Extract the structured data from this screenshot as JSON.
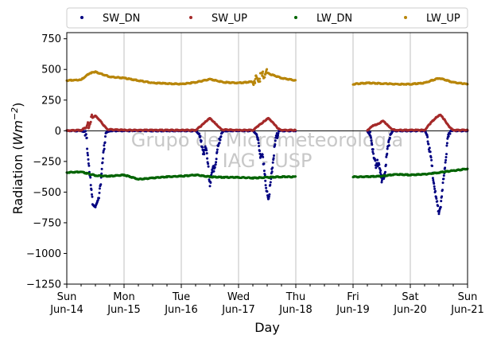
{
  "chart_data": {
    "type": "scatter",
    "title": "",
    "xlabel": "Day",
    "ylabel": "Radiation (Wm⁻²)",
    "ylabel_main": "Radiation (",
    "ylabel_unit": "Wm",
    "ylabel_exp": "−2",
    "ylabel_close": ")",
    "ylim": [
      -1250,
      800
    ],
    "yticks": [
      750,
      500,
      250,
      0,
      -250,
      -500,
      -750,
      -1000,
      -1250
    ],
    "ytick_labels": [
      "750",
      "500",
      "250",
      "0",
      "−250",
      "−500",
      "−750",
      "−1000",
      "−1250"
    ],
    "xlim": [
      0,
      7
    ],
    "xticks": [
      {
        "day": 0,
        "line1": "Sun",
        "line2": "Jun-14"
      },
      {
        "day": 1,
        "line1": "Mon",
        "line2": "Jun-15"
      },
      {
        "day": 2,
        "line1": "Tue",
        "line2": "Jun-16"
      },
      {
        "day": 3,
        "line1": "Wed",
        "line2": "Jun-17"
      },
      {
        "day": 4,
        "line1": "Thu",
        "line2": "Jun-18"
      },
      {
        "day": 5,
        "line1": "Fri",
        "line2": "Jun-19"
      },
      {
        "day": 6,
        "line1": "Sat",
        "line2": "Jun-20"
      },
      {
        "day": 7,
        "line1": "Sun",
        "line2": "Jun-21"
      }
    ],
    "grid": "x",
    "legend_position": "top",
    "watermark": [
      "Grupo de Micrometeorologia",
      "IAG - USP"
    ],
    "series": [
      {
        "name": "SW_DN",
        "color": "#000080",
        "points": [
          [
            0,
            0
          ],
          [
            0.25,
            0
          ],
          [
            0.32,
            -10
          ],
          [
            0.35,
            -80
          ],
          [
            0.4,
            -350
          ],
          [
            0.45,
            -600
          ],
          [
            0.5,
            -620
          ],
          [
            0.55,
            -560
          ],
          [
            0.6,
            -380
          ],
          [
            0.65,
            -150
          ],
          [
            0.68,
            -20
          ],
          [
            0.75,
            0
          ],
          [
            1.0,
            0
          ],
          [
            1.25,
            0
          ],
          [
            1.5,
            0
          ],
          [
            1.75,
            0
          ],
          [
            2.0,
            0
          ],
          [
            2.25,
            0
          ],
          [
            2.32,
            -30
          ],
          [
            2.38,
            -200
          ],
          [
            2.42,
            -120
          ],
          [
            2.46,
            -260
          ],
          [
            2.5,
            -420
          ],
          [
            2.55,
            -330
          ],
          [
            2.6,
            -250
          ],
          [
            2.65,
            -120
          ],
          [
            2.7,
            -20
          ],
          [
            2.75,
            0
          ],
          [
            3.0,
            0
          ],
          [
            3.25,
            0
          ],
          [
            3.32,
            -30
          ],
          [
            3.38,
            -220
          ],
          [
            3.42,
            -180
          ],
          [
            3.48,
            -480
          ],
          [
            3.52,
            -550
          ],
          [
            3.56,
            -430
          ],
          [
            3.6,
            -250
          ],
          [
            3.65,
            -80
          ],
          [
            3.7,
            0
          ],
          [
            4.0,
            0
          ],
          [
            5.25,
            0
          ],
          [
            5.3,
            -40
          ],
          [
            5.35,
            -150
          ],
          [
            5.4,
            -310
          ],
          [
            5.45,
            -230
          ],
          [
            5.5,
            -420
          ],
          [
            5.55,
            -350
          ],
          [
            5.6,
            -180
          ],
          [
            5.65,
            -30
          ],
          [
            5.7,
            0
          ],
          [
            6.0,
            0
          ],
          [
            6.25,
            0
          ],
          [
            6.3,
            -40
          ],
          [
            6.35,
            -200
          ],
          [
            6.4,
            -380
          ],
          [
            6.45,
            -560
          ],
          [
            6.5,
            -660
          ],
          [
            6.55,
            -550
          ],
          [
            6.6,
            -300
          ],
          [
            6.65,
            -80
          ],
          [
            6.7,
            0
          ],
          [
            7.0,
            0
          ]
        ]
      },
      {
        "name": "SW_UP",
        "color": "#a52a2a",
        "points": [
          [
            0,
            0
          ],
          [
            0.25,
            5
          ],
          [
            0.35,
            30
          ],
          [
            0.45,
            110
          ],
          [
            0.5,
            120
          ],
          [
            0.55,
            100
          ],
          [
            0.65,
            40
          ],
          [
            0.72,
            10
          ],
          [
            1.0,
            5
          ],
          [
            1.5,
            5
          ],
          [
            2.0,
            5
          ],
          [
            2.25,
            5
          ],
          [
            2.35,
            40
          ],
          [
            2.42,
            75
          ],
          [
            2.5,
            100
          ],
          [
            2.58,
            70
          ],
          [
            2.65,
            30
          ],
          [
            2.72,
            8
          ],
          [
            3.0,
            5
          ],
          [
            3.25,
            5
          ],
          [
            3.35,
            40
          ],
          [
            3.45,
            80
          ],
          [
            3.52,
            100
          ],
          [
            3.6,
            70
          ],
          [
            3.68,
            20
          ],
          [
            3.75,
            5
          ],
          [
            4.0,
            5
          ],
          [
            5.25,
            5
          ],
          [
            5.35,
            40
          ],
          [
            5.45,
            60
          ],
          [
            5.52,
            80
          ],
          [
            5.6,
            50
          ],
          [
            5.68,
            10
          ],
          [
            5.75,
            5
          ],
          [
            6.0,
            5
          ],
          [
            6.25,
            5
          ],
          [
            6.35,
            60
          ],
          [
            6.45,
            110
          ],
          [
            6.52,
            130
          ],
          [
            6.6,
            90
          ],
          [
            6.68,
            30
          ],
          [
            6.75,
            5
          ],
          [
            7.0,
            5
          ]
        ]
      },
      {
        "name": "LW_DN",
        "color": "#006400",
        "points": [
          [
            0,
            -340
          ],
          [
            0.25,
            -335
          ],
          [
            0.5,
            -365
          ],
          [
            0.75,
            -370
          ],
          [
            1.0,
            -360
          ],
          [
            1.25,
            -395
          ],
          [
            1.5,
            -385
          ],
          [
            1.75,
            -375
          ],
          [
            2.0,
            -370
          ],
          [
            2.25,
            -360
          ],
          [
            2.5,
            -375
          ],
          [
            2.75,
            -380
          ],
          [
            3.0,
            -380
          ],
          [
            3.25,
            -385
          ],
          [
            3.5,
            -380
          ],
          [
            3.75,
            -375
          ],
          [
            4.0,
            -375
          ],
          [
            5.0,
            -375
          ],
          [
            5.25,
            -375
          ],
          [
            5.5,
            -370
          ],
          [
            5.75,
            -355
          ],
          [
            6.0,
            -360
          ],
          [
            6.25,
            -355
          ],
          [
            6.5,
            -340
          ],
          [
            6.75,
            -325
          ],
          [
            7.0,
            -310
          ]
        ]
      },
      {
        "name": "LW_UP",
        "color": "#b8860b",
        "points": [
          [
            0,
            410
          ],
          [
            0.25,
            415
          ],
          [
            0.4,
            470
          ],
          [
            0.5,
            480
          ],
          [
            0.75,
            440
          ],
          [
            1.0,
            430
          ],
          [
            1.25,
            410
          ],
          [
            1.5,
            390
          ],
          [
            1.75,
            385
          ],
          [
            2.0,
            380
          ],
          [
            2.25,
            395
          ],
          [
            2.5,
            420
          ],
          [
            2.75,
            395
          ],
          [
            3.0,
            390
          ],
          [
            3.25,
            400
          ],
          [
            3.5,
            470
          ],
          [
            3.75,
            430
          ],
          [
            4.0,
            410
          ],
          [
            5.0,
            380
          ],
          [
            5.25,
            390
          ],
          [
            5.5,
            385
          ],
          [
            5.75,
            380
          ],
          [
            6.0,
            380
          ],
          [
            6.25,
            390
          ],
          [
            6.5,
            430
          ],
          [
            6.75,
            395
          ],
          [
            7.0,
            380
          ]
        ]
      }
    ]
  }
}
